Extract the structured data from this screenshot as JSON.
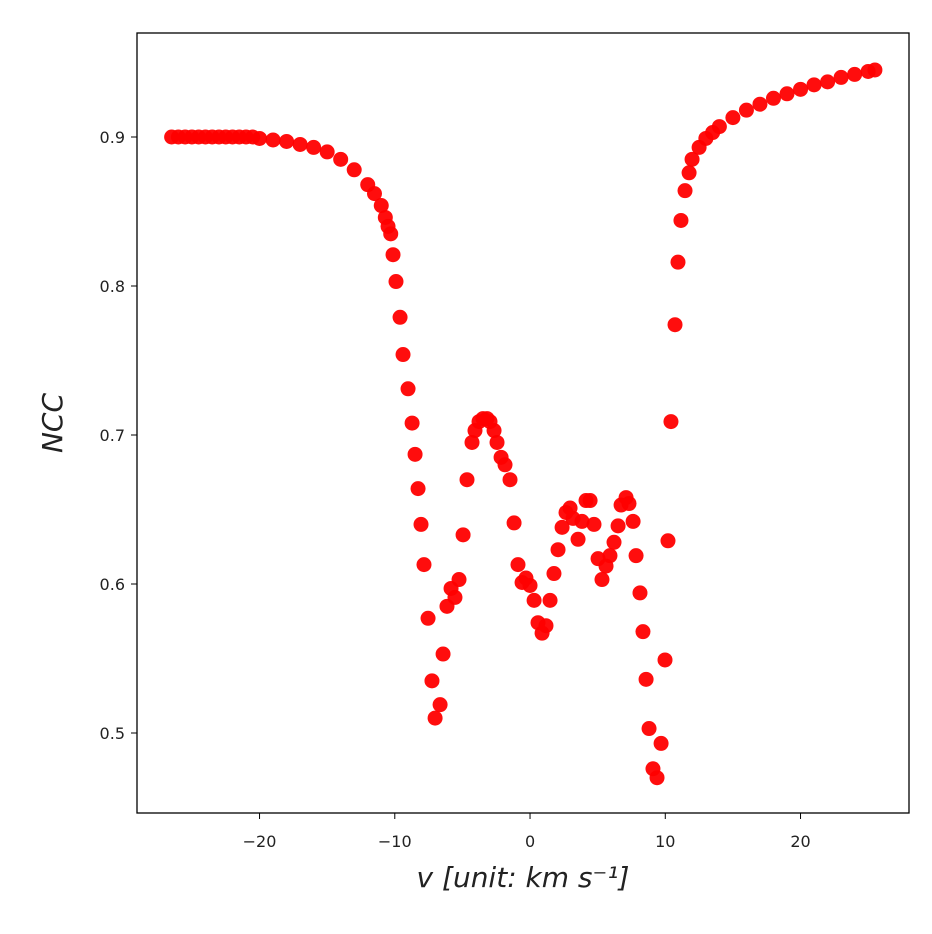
{
  "chart_data": {
    "type": "scatter",
    "xlabel": "v [unit: km s⁻¹]",
    "ylabel": "NCC",
    "color": "#ff0000",
    "xlim": [
      -29.06,
      28.02
    ],
    "ylim": [
      0.4463,
      0.9698
    ],
    "xticks": [
      {
        "value": -20,
        "label": "−20"
      },
      {
        "value": -10,
        "label": "−10"
      },
      0,
      10,
      20
    ],
    "yticks": [
      0.5,
      0.6,
      0.7,
      0.8,
      0.9
    ],
    "x": [
      -26.5,
      -26,
      -25.5,
      -25,
      -24.5,
      -24,
      -23.5,
      -23,
      -22.5,
      -22,
      -21.5,
      -21,
      -20.5,
      -20,
      -19,
      -18,
      -17,
      -16,
      -15,
      -14,
      -13,
      -12,
      -11.5,
      -11,
      -10.7,
      -10.5,
      -10.3,
      -10.13,
      -9.91,
      -9.61,
      -9.39,
      -9.02,
      -8.72,
      -8.5,
      -8.28,
      -8.06,
      -7.84,
      -7.54,
      -7.25,
      -7.02,
      -6.65,
      -6.43,
      -6.14,
      -5.84,
      -5.55,
      -5.25,
      -4.95,
      -4.66,
      -4.29,
      -4.07,
      -3.77,
      -3.48,
      -3.18,
      -2.96,
      -2.66,
      -2.44,
      -2.14,
      -1.85,
      -1.48,
      -1.18,
      -0.89,
      -0.59,
      -0.3,
      0,
      0.3,
      0.59,
      0.89,
      1.18,
      1.48,
      1.77,
      2.07,
      2.37,
      2.66,
      2.96,
      3.18,
      3.55,
      3.84,
      4.14,
      4.44,
      4.73,
      5.03,
      5.32,
      5.62,
      5.91,
      6.21,
      6.51,
      6.73,
      7.1,
      7.32,
      7.62,
      7.84,
      8.13,
      8.35,
      8.58,
      8.8,
      9.09,
      9.39,
      9.69,
      9.98,
      10.2,
      10.42,
      10.72,
      10.94,
      11.16,
      11.46,
      11.76,
      11.98,
      12.5,
      13,
      13.5,
      14,
      15,
      16,
      17,
      18,
      19,
      20,
      21,
      22,
      23,
      24,
      25,
      25.5
    ],
    "values": [
      0.9,
      0.9,
      0.9,
      0.9,
      0.9,
      0.9,
      0.9,
      0.9,
      0.9,
      0.9,
      0.9,
      0.9,
      0.9,
      0.899,
      0.898,
      0.897,
      0.895,
      0.893,
      0.89,
      0.885,
      0.878,
      0.868,
      0.862,
      0.854,
      0.846,
      0.84,
      0.835,
      0.821,
      0.803,
      0.779,
      0.754,
      0.731,
      0.708,
      0.687,
      0.664,
      0.64,
      0.613,
      0.577,
      0.535,
      0.51,
      0.519,
      0.553,
      0.585,
      0.597,
      0.591,
      0.603,
      0.633,
      0.67,
      0.695,
      0.703,
      0.709,
      0.711,
      0.711,
      0.709,
      0.703,
      0.695,
      0.685,
      0.68,
      0.67,
      0.641,
      0.613,
      0.601,
      0.604,
      0.599,
      0.589,
      0.574,
      0.567,
      0.572,
      0.589,
      0.607,
      0.623,
      0.638,
      0.648,
      0.651,
      0.644,
      0.63,
      0.642,
      0.656,
      0.656,
      0.64,
      0.617,
      0.603,
      0.612,
      0.619,
      0.628,
      0.639,
      0.653,
      0.658,
      0.654,
      0.642,
      0.619,
      0.594,
      0.568,
      0.536,
      0.503,
      0.476,
      0.47,
      0.493,
      0.549,
      0.629,
      0.709,
      0.774,
      0.816,
      0.844,
      0.864,
      0.876,
      0.885,
      0.893,
      0.899,
      0.903,
      0.907,
      0.913,
      0.918,
      0.922,
      0.926,
      0.929,
      0.932,
      0.935,
      0.937,
      0.94,
      0.942,
      0.944,
      0.945
    ]
  }
}
